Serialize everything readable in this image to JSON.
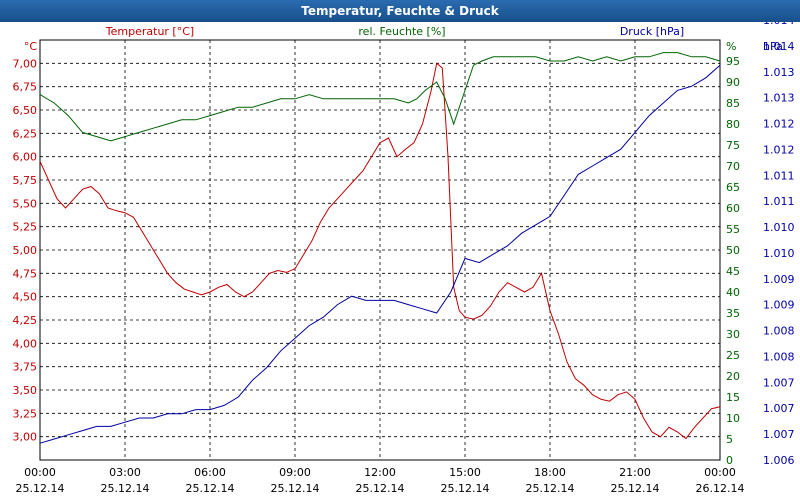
{
  "window": {
    "title": "Temperatur, Feuchte & Druck"
  },
  "chart_data": {
    "type": "line",
    "title": "Temperatur, Feuchte & Druck",
    "colors": {
      "temperature": "#c00000",
      "humidity": "#006400",
      "pressure": "#0000a0",
      "frame": "#000000"
    },
    "grid": true,
    "x_ticks": [
      {
        "time": "00:00",
        "date": "25.12.14"
      },
      {
        "time": "03:00",
        "date": "25.12.14"
      },
      {
        "time": "06:00",
        "date": "25.12.14"
      },
      {
        "time": "09:00",
        "date": "25.12.14"
      },
      {
        "time": "12:00",
        "date": "25.12.14"
      },
      {
        "time": "15:00",
        "date": "25.12.14"
      },
      {
        "time": "18:00",
        "date": "25.12.14"
      },
      {
        "time": "21:00",
        "date": "25.12.14"
      },
      {
        "time": "00:00",
        "date": "26.12.14"
      }
    ],
    "axes": {
      "temperature": {
        "label": "Temperatur [°C]",
        "unit": "°C",
        "ylim": [
          2.75,
          7.25
        ],
        "ticks": [
          "3,00",
          "3,25",
          "3,50",
          "3,75",
          "4,00",
          "4,25",
          "4,50",
          "4,75",
          "5,00",
          "5,25",
          "5,50",
          "5,75",
          "6,00",
          "6,25",
          "6,50",
          "6,75",
          "7,00"
        ]
      },
      "humidity": {
        "label": "rel. Feuchte [%]",
        "unit": "%",
        "ylim": [
          0,
          100
        ],
        "ticks": [
          "0",
          "5",
          "10",
          "15",
          "20",
          "25",
          "30",
          "35",
          "40",
          "45",
          "50",
          "55",
          "60",
          "65",
          "70",
          "75",
          "80",
          "85",
          "90",
          "95"
        ]
      },
      "pressure": {
        "label": "Druck [hPa]",
        "unit": "hPa",
        "ticks": [
          "1.006",
          "1.007",
          "1.007",
          "1.007",
          "1.008",
          "1.008",
          "1.009",
          "1.009",
          "1.010",
          "1.010",
          "1.011",
          "1.011",
          "1.012",
          "1.012",
          "1.013",
          "1.013",
          "1.014",
          "1.014"
        ]
      }
    },
    "series": [
      {
        "name": "Temperatur [°C]",
        "axis": "temperature",
        "x": [
          0,
          0.3,
          0.6,
          0.9,
          1.2,
          1.5,
          1.8,
          2.1,
          2.4,
          2.7,
          3.0,
          3.3,
          3.6,
          3.9,
          4.2,
          4.5,
          4.8,
          5.1,
          5.4,
          5.7,
          6.0,
          6.3,
          6.6,
          6.9,
          7.2,
          7.5,
          7.8,
          8.1,
          8.4,
          8.7,
          9.0,
          9.3,
          9.6,
          9.9,
          10.2,
          10.5,
          10.8,
          11.1,
          11.4,
          11.7,
          12.0,
          12.3,
          12.6,
          12.9,
          13.2,
          13.5,
          13.8,
          14.0,
          14.2,
          14.4,
          14.6,
          14.8,
          15.0,
          15.3,
          15.6,
          15.9,
          16.2,
          16.5,
          16.8,
          17.1,
          17.4,
          17.7,
          18.0,
          18.3,
          18.6,
          18.9,
          19.2,
          19.5,
          19.8,
          20.1,
          20.4,
          20.7,
          21.0,
          21.3,
          21.6,
          21.9,
          22.2,
          22.5,
          22.8,
          23.1,
          23.4,
          23.7,
          24.0
        ],
        "y": [
          5.95,
          5.75,
          5.55,
          5.45,
          5.55,
          5.65,
          5.68,
          5.6,
          5.45,
          5.42,
          5.4,
          5.35,
          5.2,
          5.05,
          4.9,
          4.75,
          4.65,
          4.58,
          4.55,
          4.52,
          4.55,
          4.6,
          4.63,
          4.55,
          4.5,
          4.55,
          4.65,
          4.75,
          4.78,
          4.76,
          4.8,
          4.95,
          5.1,
          5.3,
          5.45,
          5.55,
          5.65,
          5.75,
          5.85,
          6.0,
          6.15,
          6.2,
          6.0,
          6.08,
          6.15,
          6.35,
          6.7,
          7.0,
          6.95,
          6.0,
          4.6,
          4.35,
          4.28,
          4.26,
          4.3,
          4.4,
          4.55,
          4.65,
          4.6,
          4.55,
          4.6,
          4.75,
          4.35,
          4.1,
          3.8,
          3.62,
          3.55,
          3.45,
          3.4,
          3.38,
          3.45,
          3.48,
          3.4,
          3.2,
          3.05,
          3.0,
          3.1,
          3.05,
          2.98,
          3.1,
          3.2,
          3.3,
          3.32
        ]
      },
      {
        "name": "rel. Feuchte [%]",
        "axis": "humidity",
        "x": [
          0,
          0.5,
          1.0,
          1.5,
          2.0,
          2.5,
          3.0,
          3.5,
          4.0,
          4.5,
          5.0,
          5.5,
          6.0,
          6.5,
          7.0,
          7.5,
          8.0,
          8.5,
          9.0,
          9.5,
          10.0,
          10.5,
          11.0,
          11.5,
          12.0,
          12.5,
          13.0,
          13.3,
          13.6,
          14.0,
          14.3,
          14.6,
          15.0,
          15.3,
          15.6,
          16.0,
          16.5,
          17.0,
          17.5,
          18.0,
          18.5,
          19.0,
          19.5,
          20.0,
          20.5,
          21.0,
          21.5,
          22.0,
          22.5,
          23.0,
          23.5,
          24.0
        ],
        "y": [
          87,
          85,
          82,
          78,
          77,
          76,
          77,
          78,
          79,
          80,
          81,
          81,
          82,
          83,
          84,
          84,
          85,
          86,
          86,
          87,
          86,
          86,
          86,
          86,
          86,
          86,
          85,
          86,
          88,
          90,
          86,
          80,
          88,
          94,
          95,
          96,
          96,
          96,
          96,
          95,
          95,
          96,
          95,
          96,
          95,
          96,
          96,
          97,
          97,
          96,
          96,
          95
        ]
      },
      {
        "name": "Druck [hPa]",
        "axis": "pressure",
        "x": [
          0,
          0.5,
          1.0,
          1.5,
          2.0,
          2.5,
          3.0,
          3.5,
          4.0,
          4.5,
          5.0,
          5.5,
          6.0,
          6.5,
          7.0,
          7.5,
          8.0,
          8.5,
          9.0,
          9.5,
          10.0,
          10.5,
          11.0,
          11.5,
          12.0,
          12.5,
          13.0,
          13.5,
          14.0,
          14.5,
          15.0,
          15.5,
          16.0,
          16.5,
          17.0,
          17.5,
          18.0,
          18.5,
          19.0,
          19.5,
          20.0,
          20.5,
          21.0,
          21.5,
          22.0,
          22.5,
          23.0,
          23.5,
          24.0
        ],
        "y": [
          4,
          5,
          6,
          7,
          8,
          8,
          9,
          10,
          10,
          11,
          11,
          12,
          12,
          13,
          15,
          19,
          22,
          26,
          29,
          32,
          34,
          37,
          39,
          38,
          38,
          38,
          37,
          36,
          35,
          40,
          48,
          47,
          49,
          51,
          54,
          56,
          58,
          63,
          68,
          70,
          72,
          74,
          78,
          82,
          85,
          88,
          89,
          91,
          94
        ]
      }
    ]
  }
}
